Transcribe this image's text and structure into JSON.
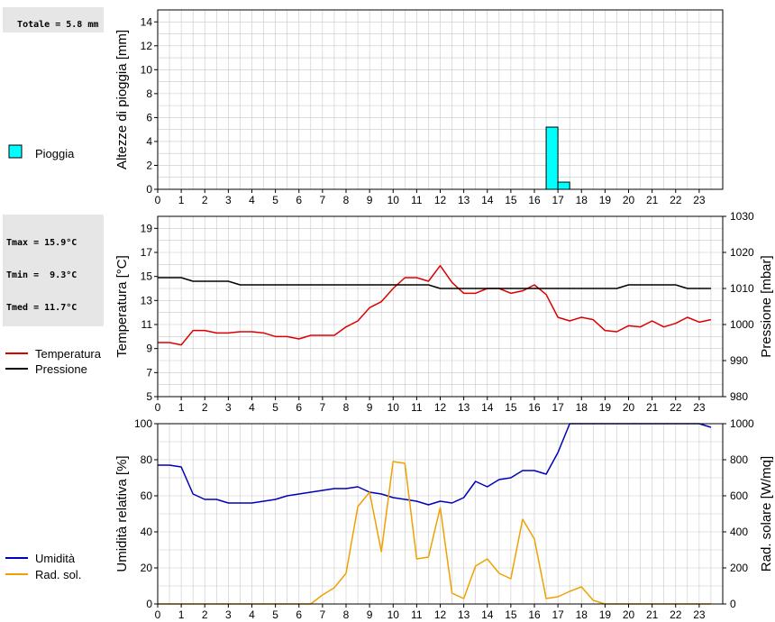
{
  "summaries": {
    "rain_total": "Totale = 5.8 mm",
    "tmax": "Tmax = 15.9°C",
    "tmin": "Tmin =  9.3°C",
    "tmed": "Tmed = 11.7°C"
  },
  "legend": {
    "rain": "Pioggia",
    "temperature": "Temperatura",
    "pressure": "Pressione",
    "humidity": "Umidità",
    "solar": "Rad. sol."
  },
  "colors": {
    "rain_fill": "#00ffff",
    "temperature": "#dd0000",
    "pressure": "#000000",
    "humidity": "#0000bb",
    "solar": "#f0a000",
    "grid": "#c8c8c8"
  },
  "hour_ticks": [
    "0",
    "1",
    "2",
    "3",
    "4",
    "5",
    "6",
    "7",
    "8",
    "9",
    "10",
    "11",
    "12",
    "13",
    "14",
    "15",
    "16",
    "17",
    "18",
    "19",
    "20",
    "21",
    "22",
    "23"
  ],
  "chart_data": [
    {
      "type": "bar",
      "ylabel": "Altezze di pioggia [mm]",
      "xlim": [
        0,
        24
      ],
      "ylim": [
        0,
        15
      ],
      "yticks": [
        "0",
        "2",
        "4",
        "6",
        "8",
        "10",
        "12",
        "14"
      ],
      "series": [
        {
          "name": "Pioggia",
          "bars": [
            {
              "x0": 16.5,
              "x1": 17.0,
              "value": 5.2
            },
            {
              "x0": 17.0,
              "x1": 17.5,
              "value": 0.6
            }
          ]
        }
      ]
    },
    {
      "type": "line",
      "ylabel": "Temperatura [°C]",
      "y2label": "Pressione [mbar]",
      "xlim": [
        0,
        24
      ],
      "ylim": [
        5,
        20
      ],
      "y2lim": [
        980,
        1030
      ],
      "yticks": [
        "5",
        "7",
        "9",
        "11",
        "13",
        "15",
        "17",
        "19"
      ],
      "y2ticks": [
        "980",
        "990",
        "1000",
        "1010",
        "1020",
        "1030"
      ],
      "x": [
        0,
        0.5,
        1,
        1.5,
        2,
        2.5,
        3,
        3.5,
        4,
        4.5,
        5,
        5.5,
        6,
        6.5,
        7,
        7.5,
        8,
        8.5,
        9,
        9.5,
        10,
        10.5,
        11,
        11.5,
        12,
        12.5,
        13,
        13.5,
        14,
        14.5,
        15,
        15.5,
        16,
        16.5,
        17,
        17.5,
        18,
        18.5,
        19,
        19.5,
        20,
        20.5,
        21,
        21.5,
        22,
        22.5,
        23,
        23.5
      ],
      "series": [
        {
          "name": "Temperatura",
          "axis": "left",
          "values": [
            9.5,
            9.5,
            9.3,
            10.5,
            10.5,
            10.3,
            10.3,
            10.4,
            10.4,
            10.3,
            10.0,
            10.0,
            9.8,
            10.1,
            10.1,
            10.1,
            10.8,
            11.3,
            12.4,
            12.9,
            14.0,
            14.9,
            14.9,
            14.6,
            15.9,
            14.5,
            13.6,
            13.6,
            14.0,
            14.0,
            13.6,
            13.8,
            14.3,
            13.5,
            11.6,
            11.3,
            11.6,
            11.4,
            10.5,
            10.4,
            10.9,
            10.8,
            11.3,
            10.8,
            11.1,
            11.6,
            11.2,
            11.4
          ]
        },
        {
          "name": "Pressione",
          "axis": "right",
          "values": [
            1013,
            1013,
            1013,
            1012,
            1012,
            1012,
            1012,
            1011,
            1011,
            1011,
            1011,
            1011,
            1011,
            1011,
            1011,
            1011,
            1011,
            1011,
            1011,
            1011,
            1011,
            1011,
            1011,
            1011,
            1010,
            1010,
            1010,
            1010,
            1010,
            1010,
            1010,
            1010,
            1010,
            1010,
            1010,
            1010,
            1010,
            1010,
            1010,
            1010,
            1011,
            1011,
            1011,
            1011,
            1011,
            1010,
            1010,
            1010
          ]
        }
      ]
    },
    {
      "type": "line",
      "ylabel": "Umidità relativa [%]",
      "y2label": "Rad. solare [W/mq]",
      "xlim": [
        0,
        24
      ],
      "ylim": [
        0,
        100
      ],
      "y2lim": [
        0,
        1000
      ],
      "yticks": [
        "0",
        "20",
        "40",
        "60",
        "80",
        "100"
      ],
      "y2ticks": [
        "0",
        "200",
        "400",
        "600",
        "800",
        "1000"
      ],
      "x": [
        0,
        0.5,
        1,
        1.5,
        2,
        2.5,
        3,
        3.5,
        4,
        4.5,
        5,
        5.5,
        6,
        6.5,
        7,
        7.5,
        8,
        8.5,
        9,
        9.5,
        10,
        10.5,
        11,
        11.5,
        12,
        12.5,
        13,
        13.5,
        14,
        14.5,
        15,
        15.5,
        16,
        16.5,
        17,
        17.5,
        18,
        18.5,
        19,
        19.5,
        20,
        20.5,
        21,
        21.5,
        22,
        22.5,
        23,
        23.5
      ],
      "series": [
        {
          "name": "Umidità",
          "axis": "left",
          "values": [
            77,
            77,
            76,
            61,
            58,
            58,
            56,
            56,
            56,
            57,
            58,
            60,
            61,
            62,
            63,
            64,
            64,
            65,
            62,
            61,
            59,
            58,
            57,
            55,
            57,
            56,
            59,
            68,
            65,
            69,
            70,
            74,
            74,
            72,
            84,
            100,
            100,
            100,
            100,
            100,
            100,
            100,
            100,
            100,
            100,
            100,
            100,
            98
          ]
        },
        {
          "name": "Rad. sol.",
          "axis": "right",
          "values": [
            0,
            0,
            0,
            0,
            0,
            0,
            0,
            0,
            0,
            0,
            0,
            0,
            0,
            0,
            50,
            90,
            170,
            540,
            620,
            290,
            790,
            780,
            250,
            260,
            535,
            60,
            30,
            210,
            250,
            170,
            140,
            470,
            360,
            30,
            40,
            70,
            95,
            20,
            0,
            0,
            0,
            0,
            0,
            0,
            0,
            0,
            0,
            0
          ]
        }
      ]
    }
  ]
}
